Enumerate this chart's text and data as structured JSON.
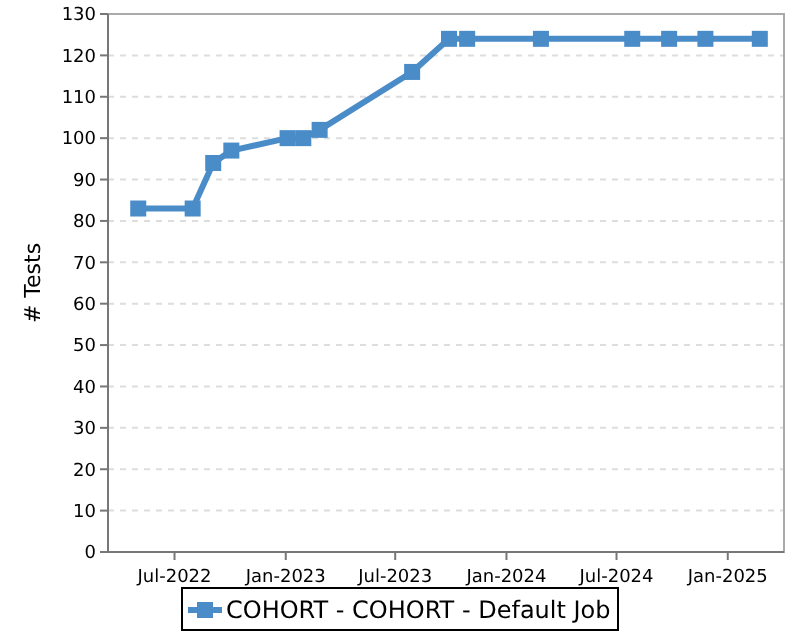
{
  "chart_data": {
    "type": "line",
    "ylabel": "# Tests",
    "x": [
      "2022-05-02",
      "2022-07-31",
      "2022-09-03",
      "2022-10-03",
      "2023-01-04",
      "2023-01-30",
      "2023-02-26",
      "2023-07-29",
      "2023-09-28",
      "2023-10-28",
      "2024-02-27",
      "2024-07-27",
      "2024-09-26",
      "2024-11-25",
      "2025-02-23"
    ],
    "series": [
      {
        "name": "COHORT - COHORT - Default Job",
        "color": "#4a8cc8",
        "values": [
          83,
          83,
          94,
          97,
          100,
          100,
          102,
          116,
          124,
          124,
          124,
          124,
          124,
          124,
          124
        ]
      }
    ],
    "xlim": [
      "2022-03-13",
      "2025-04-04"
    ],
    "xticks": [
      {
        "value": "2022-07-01",
        "label": "Jul-2022"
      },
      {
        "value": "2023-01-01",
        "label": "Jan-2023"
      },
      {
        "value": "2023-07-01",
        "label": "Jul-2023"
      },
      {
        "value": "2024-01-01",
        "label": "Jan-2024"
      },
      {
        "value": "2024-07-01",
        "label": "Jul-2024"
      },
      {
        "value": "2025-01-01",
        "label": "Jan-2025"
      }
    ],
    "ylim": [
      0,
      130
    ],
    "yticks": [
      0,
      10,
      20,
      30,
      40,
      50,
      60,
      70,
      80,
      90,
      100,
      110,
      120,
      130
    ],
    "grid": "y",
    "legend": "bottom",
    "marker": "square",
    "line_style": "solid"
  }
}
